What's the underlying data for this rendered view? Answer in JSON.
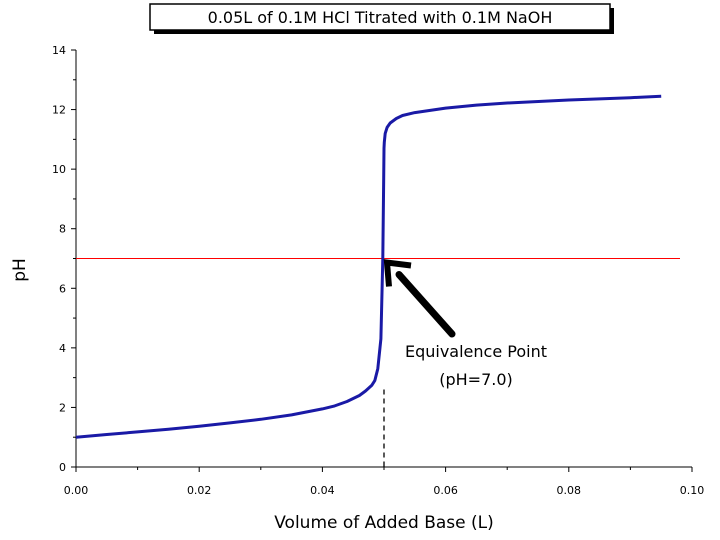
{
  "chart_data": {
    "type": "line",
    "title": "0.05L of 0.1M HCl Titrated with 0.1M NaOH",
    "xlabel": "Volume of Added Base (L)",
    "ylabel": "pH",
    "xlim": [
      0,
      0.1
    ],
    "ylim": [
      0,
      14
    ],
    "x_ticks": [
      "0.00",
      "0.02",
      "0.04",
      "0.06",
      "0.08",
      "0.10"
    ],
    "y_ticks": [
      "0",
      "2",
      "4",
      "6",
      "8",
      "10",
      "12",
      "14"
    ],
    "grid": false,
    "series": [
      {
        "color": "#1a1aa6",
        "x": [
          0.0,
          0.005,
          0.01,
          0.015,
          0.02,
          0.025,
          0.03,
          0.035,
          0.04,
          0.042,
          0.044,
          0.046,
          0.047,
          0.048,
          0.0485,
          0.049,
          0.0495,
          0.0498,
          0.04995,
          0.05,
          0.05005,
          0.0502,
          0.0505,
          0.051,
          0.052,
          0.053,
          0.055,
          0.06,
          0.065,
          0.07,
          0.08,
          0.09,
          0.095
        ],
        "y": [
          1.0,
          1.09,
          1.18,
          1.27,
          1.37,
          1.48,
          1.6,
          1.75,
          1.95,
          2.05,
          2.2,
          2.4,
          2.55,
          2.74,
          2.9,
          3.3,
          4.3,
          7.0,
          9.7,
          10.7,
          10.9,
          11.2,
          11.4,
          11.55,
          11.7,
          11.8,
          11.9,
          12.05,
          12.15,
          12.22,
          12.32,
          12.4,
          12.45
        ]
      }
    ],
    "reference_lines": [
      {
        "orientation": "horizontal",
        "y": 7.0,
        "color": "#ff0000"
      },
      {
        "orientation": "vertical",
        "x": 0.05,
        "style": "dashed",
        "color": "#000000"
      }
    ],
    "annotation": {
      "line1": "Equivalence Point",
      "line2": "(pH=7.0)",
      "points_to": {
        "x": 0.05,
        "y": 7.0
      }
    }
  }
}
